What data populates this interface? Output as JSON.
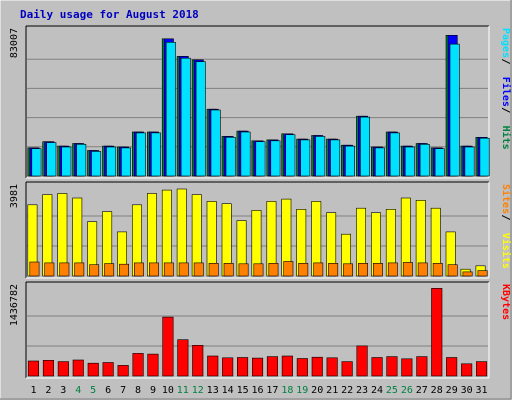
{
  "chart_data": {
    "type": "bar",
    "title": "Daily usage for August 2018",
    "categories": [
      "1",
      "2",
      "3",
      "4",
      "5",
      "6",
      "7",
      "8",
      "9",
      "10",
      "11",
      "12",
      "13",
      "14",
      "15",
      "16",
      "17",
      "18",
      "19",
      "20",
      "21",
      "22",
      "23",
      "24",
      "25",
      "26",
      "27",
      "28",
      "29",
      "30",
      "31"
    ],
    "weekend_days": [
      "4",
      "5",
      "11",
      "12",
      "18",
      "19",
      "25",
      "26"
    ],
    "grid": true,
    "legend_position": "right",
    "panels": [
      {
        "name": "hits-files-pages",
        "max_label": "83007",
        "ymax": 83007,
        "series": [
          {
            "name": "Hits",
            "color": "#008040",
            "values": [
              16000,
              19500,
              17000,
              18500,
              14500,
              17000,
              16500,
              25000,
              25000,
              78000,
              68000,
              66000,
              38000,
              22500,
              25500,
              20000,
              20500,
              24000,
              21000,
              23000,
              21000,
              17500,
              34000,
              16500,
              25000,
              17000,
              18500,
              16000,
              80000,
              17000,
              22000
            ]
          },
          {
            "name": "Files",
            "color": "#0000ff",
            "values": [
              16000,
              19500,
              17000,
              18500,
              14500,
              17000,
              16500,
              25000,
              25000,
              78000,
              68000,
              66000,
              38000,
              22500,
              25500,
              20000,
              20500,
              24000,
              21000,
              23000,
              21000,
              17500,
              34000,
              16500,
              25000,
              17000,
              18500,
              16000,
              80000,
              17000,
              22000
            ]
          },
          {
            "name": "Pages",
            "color": "#00e0ff",
            "values": [
              15500,
              19000,
              16500,
              18000,
              14000,
              16500,
              16000,
              24500,
              24500,
              76000,
              67000,
              65000,
              37500,
              22000,
              25000,
              19500,
              20000,
              23500,
              20500,
              22500,
              20500,
              17000,
              33500,
              16000,
              24500,
              16500,
              18000,
              15500,
              75000,
              16500,
              21500
            ]
          }
        ]
      },
      {
        "name": "visits-sites",
        "max_label": "3981",
        "ymax": 3981,
        "series": [
          {
            "name": "Visits",
            "color": "#ffff00",
            "values": [
              3150,
              3600,
              3650,
              3450,
              2400,
              2850,
              1950,
              3150,
              3650,
              3800,
              3850,
              3600,
              3300,
              3200,
              2450,
              2900,
              3300,
              3400,
              2950,
              3300,
              2800,
              1850,
              3000,
              2800,
              2950,
              3450,
              3350,
              3000,
              1950,
              300,
              450
            ]
          },
          {
            "name": "Sites",
            "color": "#ff8000",
            "values": [
              620,
              580,
              580,
              580,
              500,
              550,
              520,
              580,
              580,
              580,
              580,
              580,
              560,
              560,
              540,
              540,
              560,
              640,
              560,
              580,
              560,
              540,
              560,
              560,
              580,
              600,
              580,
              560,
              500,
              180,
              240
            ]
          }
        ]
      },
      {
        "name": "kbytes",
        "max_label": "1436782",
        "ymax": 1436782,
        "series": [
          {
            "name": "KBytes",
            "color": "#ff0000",
            "values": [
              240000,
              250000,
              230000,
              255000,
              205000,
              215000,
              170000,
              360000,
              350000,
              940000,
              580000,
              490000,
              320000,
              290000,
              295000,
              285000,
              310000,
              320000,
              280000,
              300000,
              290000,
              230000,
              480000,
              295000,
              310000,
              275000,
              310000,
              1400000,
              295000,
              195000,
              230000
            ]
          }
        ]
      }
    ]
  }
}
